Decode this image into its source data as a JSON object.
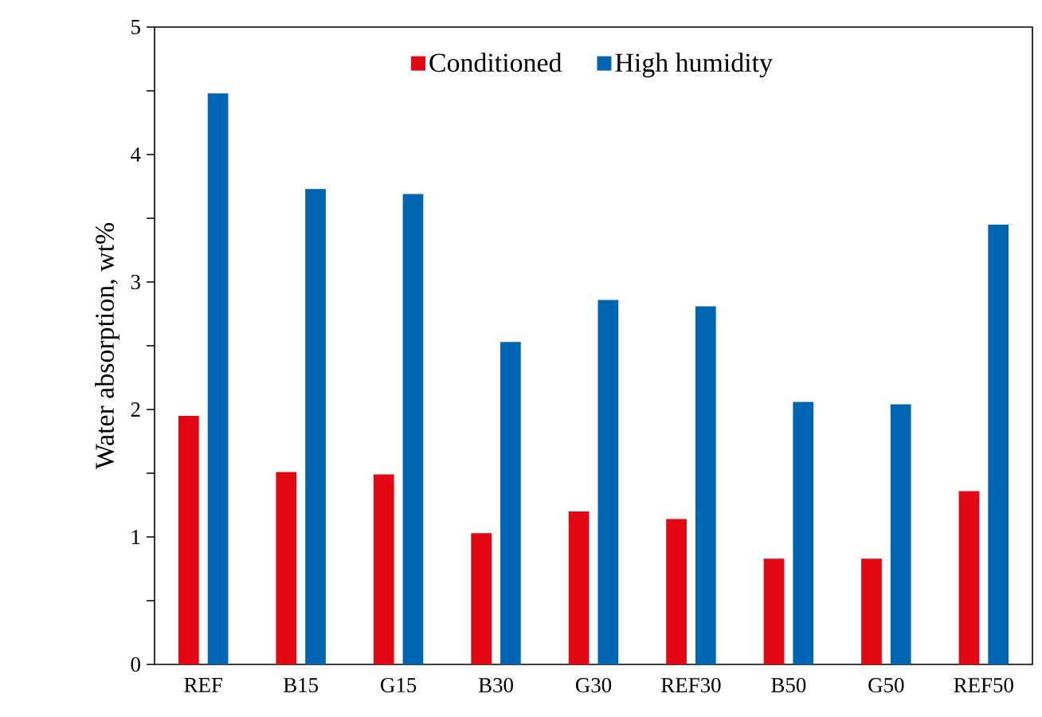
{
  "chart_data": {
    "type": "bar",
    "ylabel": "Water absorption, wt%",
    "categories": [
      "REF",
      "B15",
      "G15",
      "B30",
      "G30",
      "REF30",
      "B50",
      "G50",
      "REF50"
    ],
    "series": [
      {
        "name": "Conditioned",
        "color": "#e30613",
        "values": [
          1.95,
          1.51,
          1.49,
          1.03,
          1.2,
          1.14,
          0.83,
          0.83,
          1.36
        ]
      },
      {
        "name": "High humidity",
        "color": "#0066b3",
        "values": [
          4.48,
          3.73,
          3.69,
          2.53,
          2.86,
          2.81,
          2.06,
          2.04,
          3.45
        ]
      }
    ],
    "ylim": [
      0,
      5
    ],
    "yticks": [
      0,
      {
        "value": 0.5,
        "label": null
      },
      1,
      {
        "value": 1.5,
        "label": null
      },
      2,
      {
        "value": 2.5,
        "label": null
      },
      3,
      {
        "value": 3.5,
        "label": null
      },
      4,
      {
        "value": 4.5,
        "label": null
      },
      5
    ],
    "grid": false,
    "legend": "top"
  }
}
